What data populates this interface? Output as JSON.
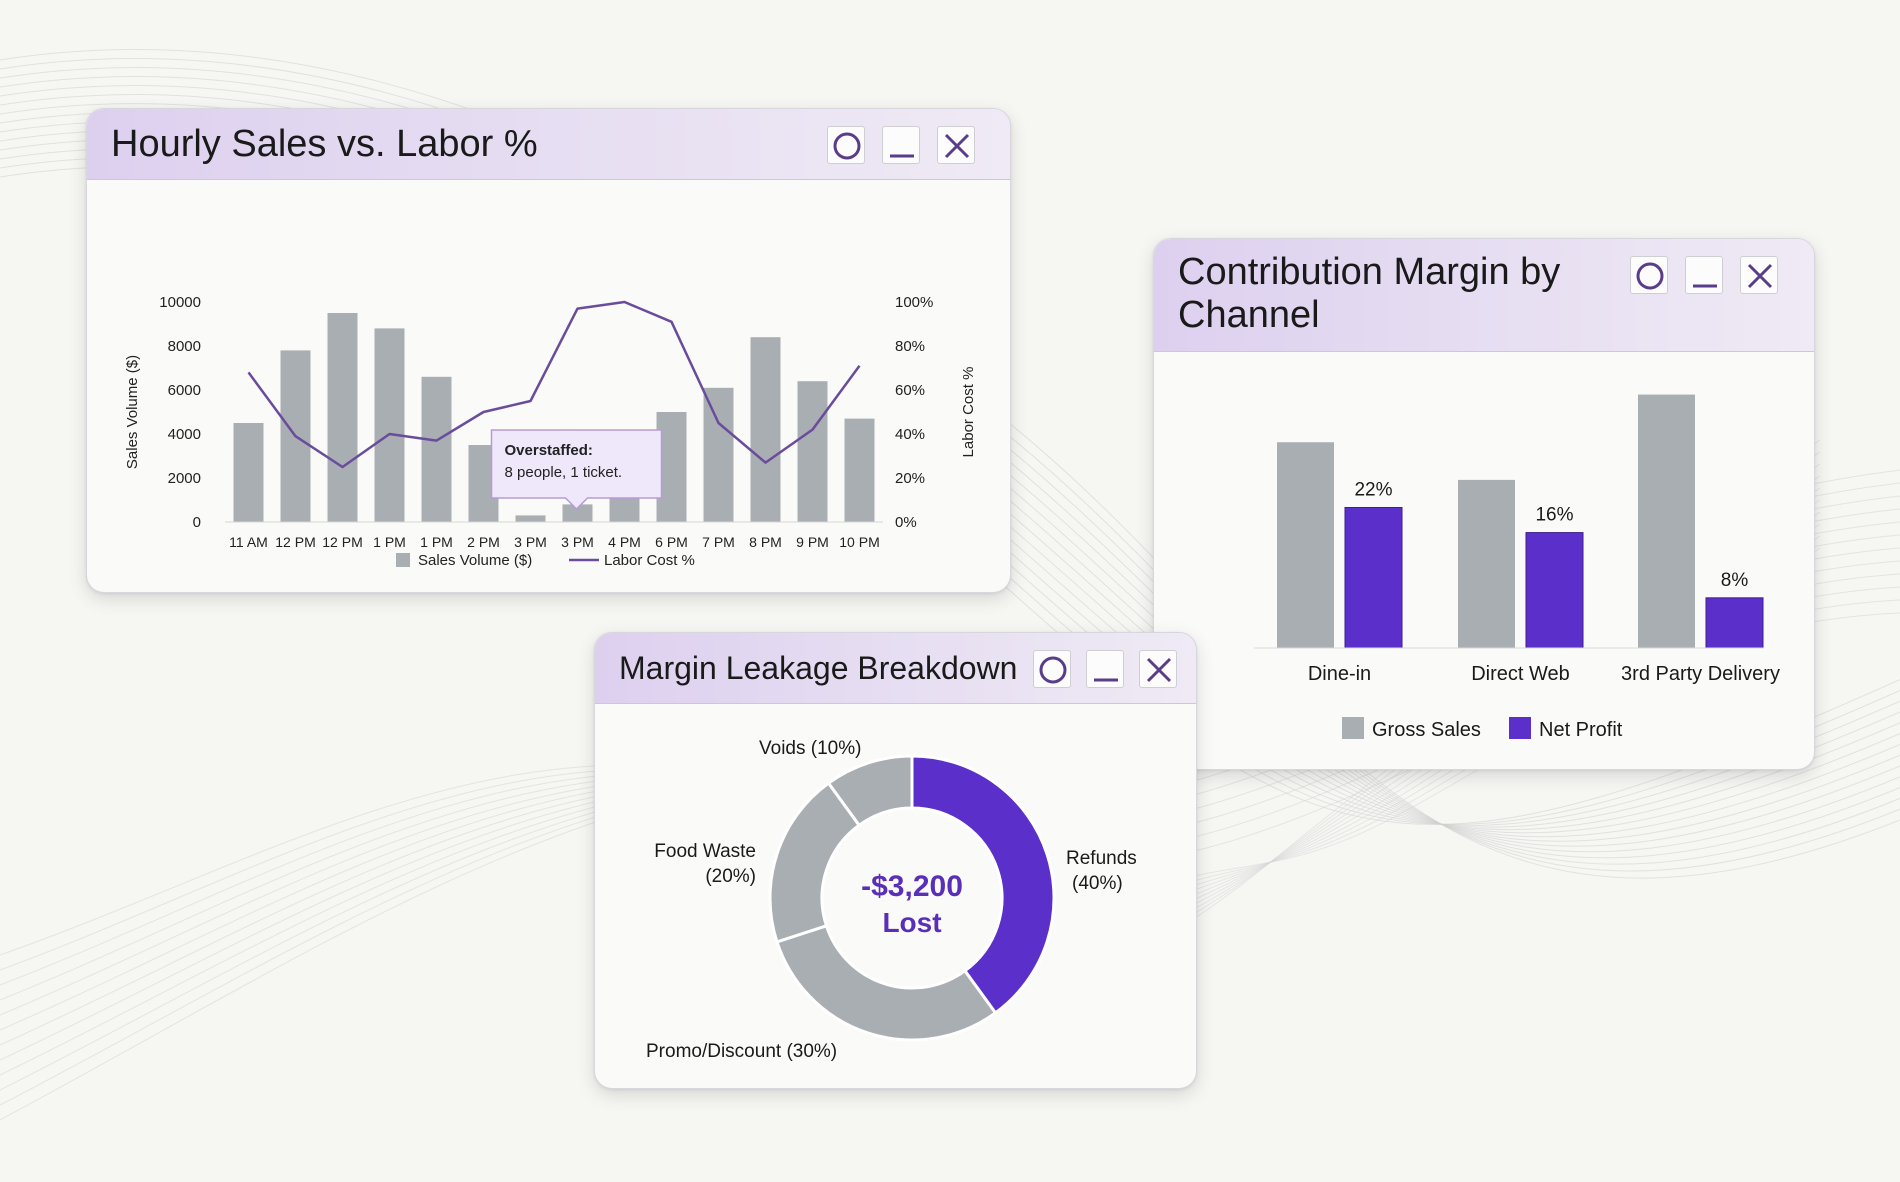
{
  "colors": {
    "gray_bar": "#a9aeb2",
    "purple": "#5b2fc9",
    "labor_line": "#6a4c9c",
    "tooltip_bg": "#efe7fa",
    "tooltip_border": "#b79ad9",
    "center_text": "#5a2fb8"
  },
  "icons": {
    "restore": "circle-icon",
    "minimize": "minimize-icon",
    "close": "close-icon"
  },
  "windows": {
    "hourly": {
      "title": "Hourly Sales vs. Labor %"
    },
    "contribution": {
      "title": "Contribution Margin by\nChannel"
    },
    "leakage": {
      "title": "Margin Leakage Breakdown"
    }
  },
  "chart_data": [
    {
      "id": "hourly",
      "type": "bar",
      "title": "Hourly Sales vs. Labor %",
      "categories": [
        "11 AM",
        "12 PM",
        "12 PM",
        "1 PM",
        "1 PM",
        "2 PM",
        "3 PM",
        "3 PM",
        "4 PM",
        "6 PM",
        "7 PM",
        "8 PM",
        "9 PM",
        "10 PM"
      ],
      "series": [
        {
          "name": "Sales Volume ($)",
          "type": "bar",
          "axis": "left",
          "values": [
            4500,
            7800,
            9500,
            8800,
            6600,
            3500,
            300,
            800,
            2500,
            5000,
            6100,
            8400,
            6400,
            4700
          ]
        },
        {
          "name": "Labor Cost %",
          "type": "line",
          "axis": "right",
          "values": [
            68,
            39,
            25,
            40,
            37,
            50,
            55,
            97,
            100,
            91,
            45,
            27,
            42,
            71
          ]
        }
      ],
      "ylabel": "Sales Volume ($)",
      "ylim": [
        0,
        10000
      ],
      "yticks": [
        "0",
        "2000",
        "4000",
        "6000",
        "8000",
        "10000"
      ],
      "y2label": "Labor Cost %",
      "y2lim": [
        0,
        100
      ],
      "y2ticks": [
        "0%",
        "20%",
        "40%",
        "60%",
        "80%",
        "100%"
      ],
      "legend": "bottom",
      "annotation": {
        "category_index": 7,
        "title": "Overstaffed:",
        "text": "8 people, 1 ticket."
      }
    },
    {
      "id": "contribution",
      "type": "bar",
      "title": "Contribution Margin by Channel",
      "categories": [
        "Dine-in",
        "Direct Web",
        "3rd Party Delivery"
      ],
      "series": [
        {
          "name": "Gross Sales",
          "values": [
            82,
            67,
            101
          ]
        },
        {
          "name": "Net Profit",
          "values": [
            56,
            46,
            20
          ],
          "labels": [
            "22%",
            "16%",
            "8%"
          ]
        }
      ],
      "ylim": [
        0,
        110
      ],
      "legend": "bottom"
    },
    {
      "id": "leakage",
      "type": "pie",
      "title": "Margin Leakage Breakdown",
      "slices": [
        {
          "label": "Refunds",
          "pct_label": "(40%)",
          "value": 40,
          "color": "#5b2fc9"
        },
        {
          "label": "Promo/Discount (30%)",
          "pct_label": "",
          "value": 30,
          "color": "#a9aeb2"
        },
        {
          "label": "Food Waste",
          "pct_label": "(20%)",
          "value": 20,
          "color": "#a9aeb2"
        },
        {
          "label": "Voids (10%)",
          "pct_label": "",
          "value": 10,
          "color": "#a9aeb2"
        }
      ],
      "center_value": "-$3,200",
      "center_label": "Lost"
    }
  ]
}
